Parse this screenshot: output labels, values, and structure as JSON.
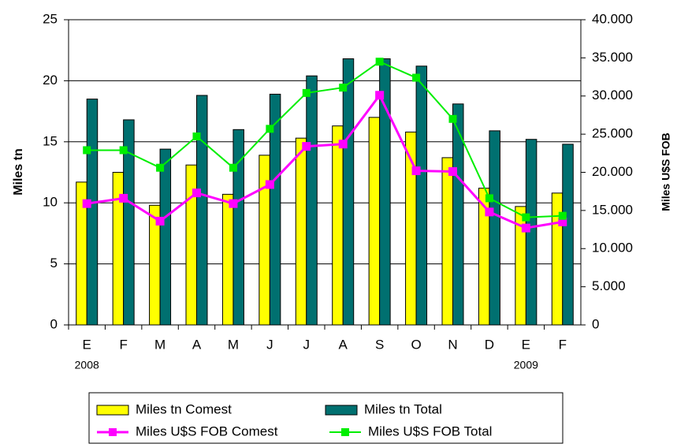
{
  "chart_data": {
    "type": "bar_line",
    "y_label": "Miles tn",
    "y2_label": "Miles U$S FOB",
    "categories": [
      "E",
      "F",
      "M",
      "A",
      "M",
      "J",
      "J",
      "A",
      "S",
      "O",
      "N",
      "D",
      "E",
      "F"
    ],
    "x_sublabels": [
      "2008",
      null,
      null,
      null,
      null,
      null,
      null,
      null,
      null,
      null,
      null,
      null,
      "2009",
      null
    ],
    "series": [
      {
        "name": "Miles tn Comest",
        "type": "bar",
        "color": "#ffff00",
        "values": [
          11.7,
          12.5,
          9.8,
          13.1,
          10.7,
          13.9,
          15.3,
          16.3,
          17.0,
          15.8,
          13.7,
          11.2,
          9.7,
          10.8
        ]
      },
      {
        "name": "Miles tn Total",
        "type": "bar",
        "color": "#007070",
        "values": [
          18.5,
          16.8,
          14.4,
          18.8,
          16.0,
          18.9,
          20.4,
          21.8,
          21.8,
          21.2,
          18.1,
          15.9,
          15.2,
          14.8
        ]
      },
      {
        "name": "Miles U$S FOB Comest",
        "type": "line",
        "axis": "y2",
        "color": "#ff00ff",
        "values": [
          15900,
          16600,
          13600,
          17300,
          15900,
          18400,
          23400,
          23700,
          30100,
          20200,
          20100,
          14800,
          12700,
          13500
        ]
      },
      {
        "name": "Miles U$S FOB Total",
        "type": "line",
        "axis": "y2",
        "color": "#00ee00",
        "values": [
          22900,
          22900,
          20600,
          24700,
          20600,
          25700,
          30400,
          31100,
          34500,
          32400,
          27000,
          16600,
          14100,
          14300
        ]
      }
    ],
    "ylim": [
      0,
      25
    ],
    "yticks": [
      0,
      5,
      10,
      15,
      20,
      25
    ],
    "y2lim": [
      0,
      40000
    ],
    "y2ticks": [
      0,
      {
        "value": 5000,
        "label": "5.000"
      },
      {
        "value": 10000,
        "label": "10.000"
      },
      {
        "value": 15000,
        "label": "15.000"
      },
      {
        "value": 20000,
        "label": "20.000"
      },
      {
        "value": 25000,
        "label": "25.000"
      },
      {
        "value": 30000,
        "label": "30.000"
      },
      {
        "value": 35000,
        "label": "35.000"
      },
      {
        "value": 40000,
        "label": "40.000"
      }
    ],
    "grid": true,
    "legend": "bottom"
  }
}
